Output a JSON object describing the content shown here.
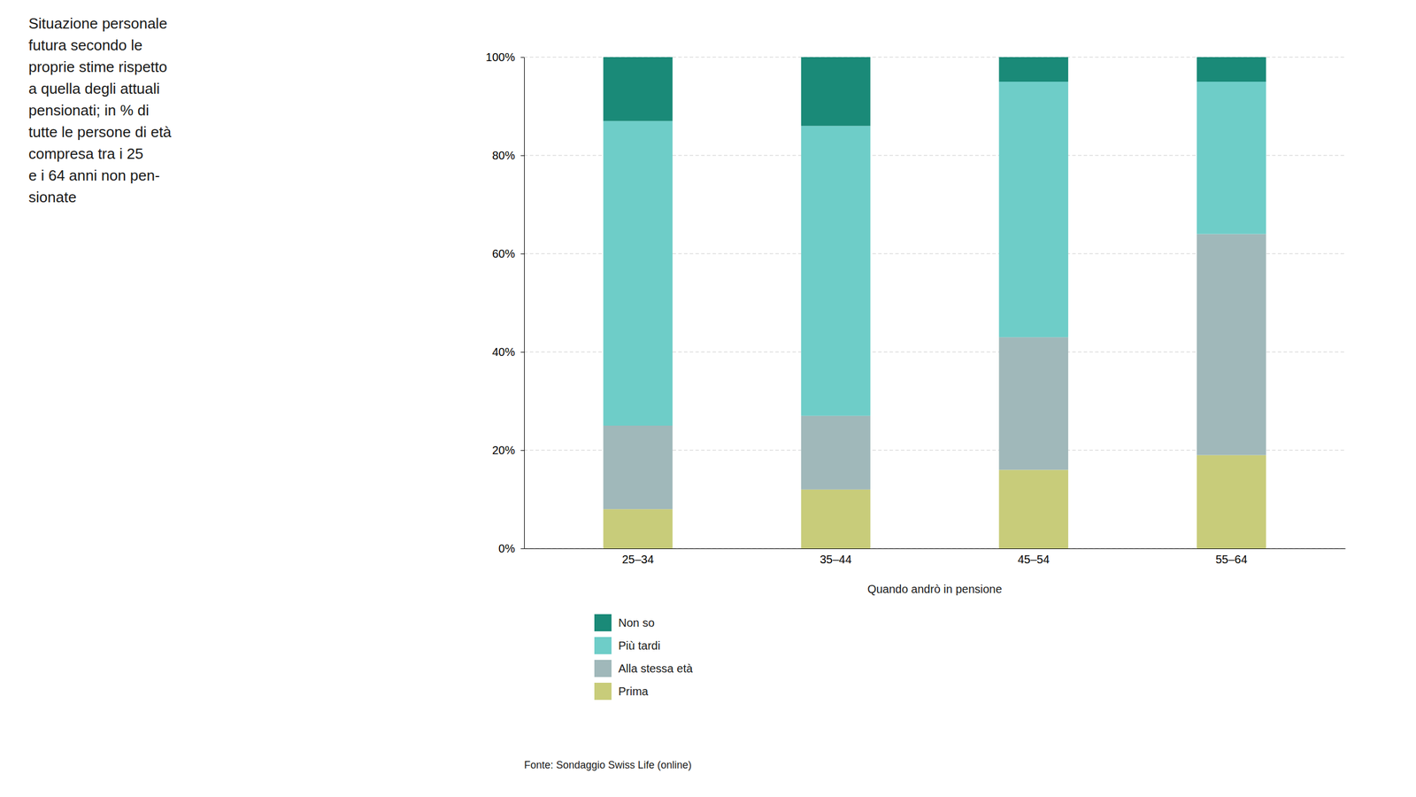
{
  "chart_data": {
    "type": "bar",
    "title": "Situazione personale\nfutura secondo le\nproprie stime rispetto\na quella degli attuali\npensionati; in % di\ntutte le persone di età\ncompresa tra i 25\ne i 64 anni non pen-\nsionate",
    "xlabel": "Quando andrò in pensione",
    "source": "Fonte: Sondaggio Swiss Life (online)",
    "categories": [
      "25–34",
      "35–44",
      "45–54",
      "55–64"
    ],
    "series": [
      {
        "name": "Prima",
        "color": "#c8cc7a",
        "values": [
          8,
          12,
          16,
          19
        ]
      },
      {
        "name": "Alla stessa età",
        "color": "#a0b8ba",
        "values": [
          17,
          15,
          27,
          45
        ]
      },
      {
        "name": "Più tardi",
        "color": "#6ecdc8",
        "values": [
          62,
          59,
          52,
          31
        ]
      },
      {
        "name": "Non so",
        "color": "#1a8a78",
        "values": [
          13,
          14,
          5,
          5
        ]
      }
    ],
    "stacked": true,
    "ylim": [
      0,
      100
    ],
    "yticks": [
      {
        "value": 0,
        "label": "0%"
      },
      {
        "value": 20,
        "label": "20%"
      },
      {
        "value": 40,
        "label": "40%"
      },
      {
        "value": 60,
        "label": "60%"
      },
      {
        "value": 80,
        "label": "80%"
      },
      {
        "value": 100,
        "label": "100%"
      }
    ],
    "grid": true,
    "legend": "bottom"
  }
}
